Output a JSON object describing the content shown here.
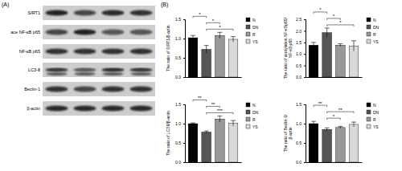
{
  "panel_labels": [
    "(A)",
    "(B)"
  ],
  "blot": {
    "labels": [
      "SIRT1",
      "ace NF-κB p65",
      "NF-κB p65",
      "LC3-Ⅱ",
      "Beclin-1",
      "β-actin"
    ]
  },
  "chart_data": [
    {
      "type": "bar",
      "y_label": "The ratio of SIRT1/β-actin",
      "categories": [
        "N",
        "DN",
        "R",
        "YS"
      ],
      "values": [
        1.02,
        0.72,
        1.08,
        0.98
      ],
      "errors": [
        0.06,
        0.1,
        0.08,
        0.07
      ],
      "colors": [
        "#000000",
        "#555555",
        "#999999",
        "#d9d9d9"
      ],
      "ylim": [
        0,
        1.5
      ],
      "yticks": [
        {
          "value": 0,
          "label": "0.0"
        },
        0.5,
        {
          "value": 1,
          "label": "1.0"
        },
        1.5
      ],
      "tick_labels": "y",
      "legend": "right",
      "significance": [
        {
          "pair": [
            "DN",
            "YS"
          ],
          "label": "*"
        },
        {
          "pair": [
            "DN",
            "R"
          ],
          "label": "*"
        },
        {
          "pair": [
            "N",
            "DN"
          ],
          "label": "*"
        }
      ]
    },
    {
      "type": "bar",
      "y_label": "The ratio of acetylation NF-κBp65/NF-κB p65",
      "categories": [
        "N",
        "DN",
        "R",
        "YS"
      ],
      "values": [
        1.38,
        1.92,
        1.38,
        1.35
      ],
      "errors": [
        0.12,
        0.2,
        0.06,
        0.22
      ],
      "colors": [
        "#000000",
        "#555555",
        "#999999",
        "#d9d9d9"
      ],
      "ylim": [
        0,
        2.5
      ],
      "yticks": [
        {
          "value": 0,
          "label": "0.0"
        },
        0.5,
        {
          "value": 1,
          "label": "1.0"
        },
        1.5,
        {
          "value": 2,
          "label": "2.0"
        },
        2.5
      ],
      "tick_labels": "y",
      "legend": "right",
      "significance": [
        {
          "pair": [
            "DN",
            "YS"
          ],
          "label": "*"
        },
        {
          "pair": [
            "DN",
            "R"
          ],
          "label": "*"
        },
        {
          "pair": [
            "N",
            "DN"
          ],
          "label": "*"
        }
      ]
    },
    {
      "type": "bar",
      "y_label": "The ratio of LC3 Ⅱ/β-actin",
      "categories": [
        "N",
        "DN",
        "R",
        "YS"
      ],
      "values": [
        1.0,
        0.78,
        1.12,
        1.01
      ],
      "errors": [
        0.02,
        0.03,
        0.08,
        0.07
      ],
      "colors": [
        "#000000",
        "#555555",
        "#999999",
        "#d9d9d9"
      ],
      "ylim": [
        0,
        1.5
      ],
      "yticks": [
        {
          "value": 0,
          "label": "0.0"
        },
        0.5,
        {
          "value": 1,
          "label": "1.0"
        },
        1.5
      ],
      "tick_labels": "y",
      "legend": "right",
      "significance": [
        {
          "pair": [
            "DN",
            "YS"
          ],
          "label": "***"
        },
        {
          "pair": [
            "DN",
            "R"
          ],
          "label": "**"
        },
        {
          "pair": [
            "N",
            "DN"
          ],
          "label": "**"
        }
      ]
    },
    {
      "type": "bar",
      "y_label": "The ratio of Beclin-1/β-actin",
      "categories": [
        "N",
        "DN",
        "R",
        "YS"
      ],
      "values": [
        1.0,
        0.85,
        0.9,
        0.98
      ],
      "errors": [
        0.06,
        0.04,
        0.03,
        0.06
      ],
      "colors": [
        "#000000",
        "#555555",
        "#999999",
        "#d9d9d9"
      ],
      "ylim": [
        0,
        1.5
      ],
      "yticks": [
        {
          "value": 0,
          "label": "0.0"
        },
        0.5,
        {
          "value": 1,
          "label": "1.0"
        },
        1.5
      ],
      "tick_labels": "y",
      "legend": "right",
      "significance": [
        {
          "pair": [
            "DN",
            "R"
          ],
          "label": "*"
        },
        {
          "pair": [
            "DN",
            "YS"
          ],
          "label": "**"
        },
        {
          "pair": [
            "N",
            "DN"
          ],
          "label": "**"
        }
      ]
    }
  ]
}
